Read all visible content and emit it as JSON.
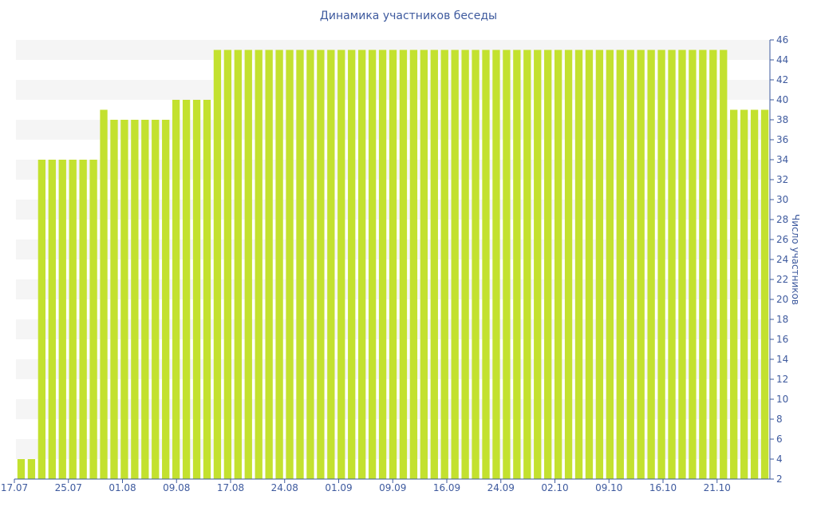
{
  "chart_data": {
    "type": "bar",
    "title": "Динамика участников беседы",
    "xlabel": "",
    "ylabel": "Число участников",
    "ylim": [
      2,
      46
    ],
    "y_ticks": [
      2,
      4,
      6,
      8,
      10,
      12,
      14,
      16,
      18,
      20,
      22,
      24,
      26,
      28,
      30,
      32,
      34,
      36,
      38,
      40,
      42,
      44,
      46
    ],
    "y_axis_side": "right",
    "x_tick_labels": [
      "17.07",
      "25.07",
      "01.08",
      "09.08",
      "17.08",
      "24.08",
      "01.09",
      "09.09",
      "16.09",
      "24.09",
      "02.10",
      "09.10",
      "16.10",
      "21.10"
    ],
    "grid": "alternating horizontal bands",
    "legend": "none",
    "values": [
      4,
      4,
      34,
      34,
      34,
      34,
      34,
      34,
      39,
      38,
      38,
      38,
      38,
      38,
      38,
      40,
      40,
      40,
      40,
      45,
      45,
      45,
      45,
      45,
      45,
      45,
      45,
      45,
      45,
      45,
      45,
      45,
      45,
      45,
      45,
      45,
      45,
      45,
      45,
      45,
      45,
      45,
      45,
      45,
      45,
      45,
      45,
      45,
      45,
      45,
      45,
      45,
      45,
      45,
      45,
      45,
      45,
      45,
      45,
      45,
      45,
      45,
      45,
      45,
      45,
      45,
      45,
      45,
      45,
      39,
      39,
      39,
      39
    ],
    "colors": {
      "bar": "#c3e12f",
      "band": "#f5f5f5",
      "text": "#3e5a9e",
      "axis": "#3e5a9e"
    }
  }
}
